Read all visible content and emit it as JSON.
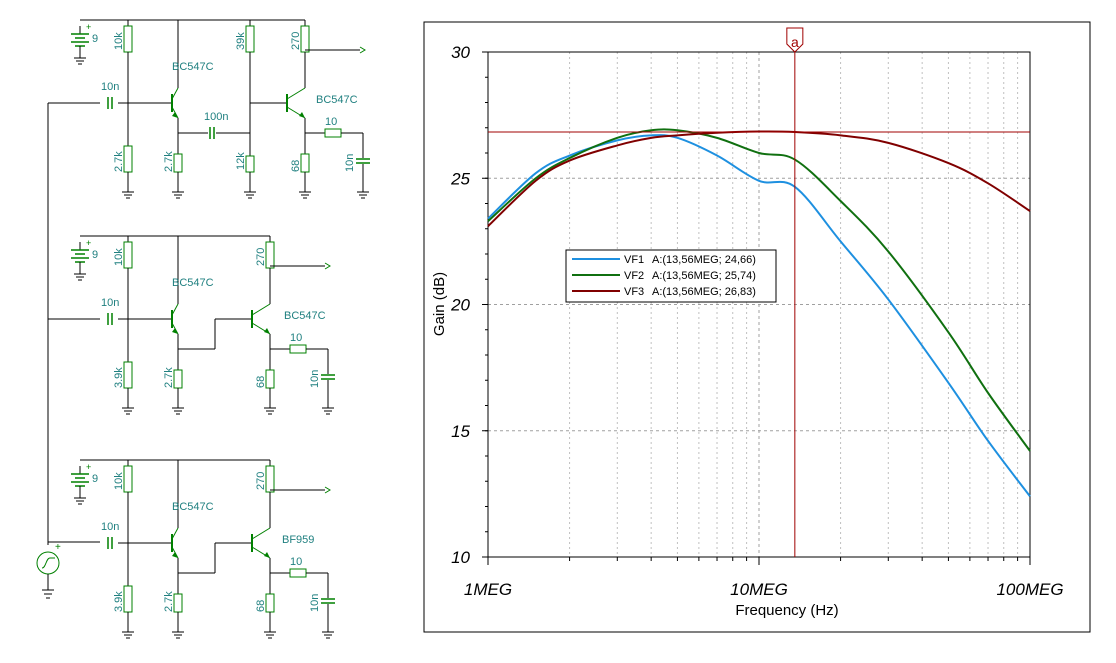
{
  "colors": {
    "schematic_wire": "#000000",
    "component": "#008000",
    "label": "#208080",
    "cursor": "#a00000",
    "grid": "#a0a0a0"
  },
  "schematic": {
    "circuits": [
      {
        "supply": "9",
        "r_top_left": "10k",
        "coupling": "10n",
        "q1": "BC547C",
        "r_bot_left": "2.7k",
        "r_emit1": "2.7k",
        "inter_cap": "100n",
        "r_top_mid": "39k",
        "r_bot_mid": "12k",
        "r_collector": "270",
        "q2": "BC547C",
        "r_emit2": "68",
        "r_series": "10",
        "c_out": "10n"
      },
      {
        "supply": "9",
        "r_top_left": "10k",
        "coupling": "10n",
        "q1": "BC547C",
        "r_bot_left": "3.9k",
        "r_emit1": "2.7k",
        "r_collector": "270",
        "q2": "BC547C",
        "r_emit2": "68",
        "r_series": "10",
        "c_out": "10n"
      },
      {
        "supply": "9",
        "r_top_left": "10k",
        "coupling": "10n",
        "q1": "BC547C",
        "r_bot_left": "3.9k",
        "r_emit1": "2.7k",
        "r_collector": "270",
        "q2": "BF959",
        "r_emit2": "68",
        "r_series": "10",
        "c_out": "10n"
      }
    ]
  },
  "chart_data": {
    "type": "line",
    "title": "",
    "xlabel": "Frequency (Hz)",
    "ylabel": "Gain (dB)",
    "x_scale": "log",
    "xlim": [
      1000000,
      100000000
    ],
    "ylim": [
      10,
      30
    ],
    "x_ticks": [
      {
        "value": 1000000,
        "label": "1MEG"
      },
      {
        "value": 10000000,
        "label": "10MEG"
      },
      {
        "value": 100000000,
        "label": "100MEG"
      }
    ],
    "y_ticks": [
      {
        "value": 10,
        "label": "10"
      },
      {
        "value": 15,
        "label": "15"
      },
      {
        "value": 20,
        "label": "20"
      },
      {
        "value": 25,
        "label": "25"
      },
      {
        "value": 30,
        "label": "30"
      }
    ],
    "grid": true,
    "legend_position": "center-left",
    "cursor": {
      "label": "a",
      "x": 13560000,
      "y": 26.83
    },
    "series": [
      {
        "name": "VF1",
        "legend": "A:(13,56MEG; 24,66)",
        "color": "#1e90e0",
        "x": [
          1000000,
          1500000,
          2000000,
          3000000,
          4000000,
          5000000,
          7000000,
          10000000,
          13560000,
          20000000,
          30000000,
          50000000,
          70000000,
          100000000
        ],
        "y": [
          23.4,
          25.2,
          25.9,
          26.5,
          26.7,
          26.6,
          25.9,
          24.9,
          24.66,
          22.5,
          20.2,
          16.9,
          14.6,
          12.4
        ]
      },
      {
        "name": "VF2",
        "legend": "A:(13,56MEG; 25,74)",
        "color": "#107010",
        "x": [
          1000000,
          1500000,
          2000000,
          3000000,
          4000000,
          5000000,
          7000000,
          10000000,
          13560000,
          20000000,
          30000000,
          50000000,
          70000000,
          100000000
        ],
        "y": [
          23.3,
          25.0,
          25.8,
          26.6,
          26.9,
          26.9,
          26.6,
          26.0,
          25.74,
          24.1,
          22.1,
          18.9,
          16.5,
          14.2
        ]
      },
      {
        "name": "VF3",
        "legend": "A:(13,56MEG; 26,83)",
        "color": "#800000",
        "x": [
          1000000,
          1500000,
          2000000,
          3000000,
          4000000,
          5000000,
          7000000,
          10000000,
          13560000,
          20000000,
          30000000,
          50000000,
          70000000,
          100000000
        ],
        "y": [
          23.1,
          24.9,
          25.7,
          26.3,
          26.6,
          26.7,
          26.8,
          26.85,
          26.83,
          26.7,
          26.4,
          25.6,
          24.8,
          23.7
        ]
      }
    ]
  }
}
